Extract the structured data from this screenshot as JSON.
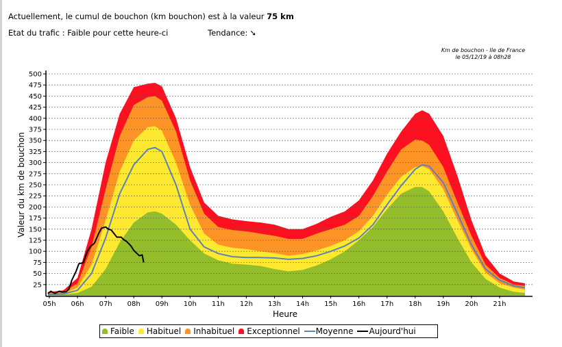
{
  "header": {
    "line1_prefix": "Actuellement, le cumul de bouchon (km bouchon) est à la valeur ",
    "line1_value": "75 km",
    "status": "Etat du trafic : Faible pour cette heure-ci",
    "trend_label": "Tendance:",
    "trend_icon": "arrow-down-right-icon",
    "trend_glyph": "➘"
  },
  "chart_data": {
    "type": "area",
    "title": "Km de bouchon - Ile de France",
    "subtitle": "le 05/12/19 à 08h28",
    "xlabel": "Heure",
    "ylabel": "Valeur du  km de bouchon",
    "ylim": [
      0,
      500
    ],
    "xlim": [
      4.95,
      21.9
    ],
    "grid": true,
    "legend_position": "bottom",
    "yticks": [
      "500",
      "475",
      "450",
      "425",
      "400",
      "375",
      "350",
      "325",
      "300",
      "275",
      "250",
      "225",
      "200",
      "175",
      "150",
      "125",
      "100",
      "75",
      "50",
      "25"
    ],
    "ytick_values": [
      500,
      475,
      450,
      425,
      400,
      375,
      350,
      325,
      300,
      275,
      250,
      225,
      200,
      175,
      150,
      125,
      100,
      75,
      50,
      25
    ],
    "xticks": [
      "05h",
      "06h",
      "07h",
      "08h",
      "09h",
      "10h",
      "11h",
      "12h",
      "13h",
      "14h",
      "15h",
      "16h",
      "17h",
      "18h",
      "19h",
      "20h",
      "21h"
    ],
    "xtick_values": [
      5,
      6,
      7,
      8,
      9,
      10,
      11,
      12,
      13,
      14,
      15,
      16,
      17,
      18,
      19,
      20,
      21
    ],
    "x": [
      4.95,
      5.5,
      6.0,
      6.5,
      7.0,
      7.5,
      8.0,
      8.5,
      8.75,
      9.0,
      9.5,
      10.0,
      10.5,
      11.0,
      11.5,
      12.0,
      12.5,
      13.0,
      13.5,
      14.0,
      14.5,
      15.0,
      15.5,
      16.0,
      16.5,
      17.0,
      17.5,
      18.0,
      18.25,
      18.5,
      19.0,
      19.5,
      20.0,
      20.5,
      21.0,
      21.5,
      21.9
    ],
    "series": [
      {
        "name": "Exceptionnel",
        "color": "#ff1020",
        "values": [
          8,
          12,
          40,
          150,
          300,
          410,
          470,
          478,
          480,
          472,
          400,
          290,
          210,
          180,
          172,
          168,
          165,
          160,
          150,
          150,
          162,
          178,
          190,
          215,
          260,
          320,
          370,
          410,
          418,
          410,
          360,
          270,
          170,
          90,
          50,
          32,
          28
        ]
      },
      {
        "name": "Inhabituel",
        "color": "#ff9426",
        "values": [
          6,
          8,
          28,
          110,
          240,
          360,
          430,
          448,
          450,
          440,
          370,
          260,
          185,
          155,
          148,
          145,
          140,
          135,
          128,
          128,
          140,
          150,
          160,
          180,
          225,
          280,
          330,
          352,
          350,
          340,
          290,
          210,
          135,
          70,
          40,
          25,
          22
        ]
      },
      {
        "name": "Habituel",
        "color": "#ffe930",
        "values": [
          4,
          5,
          18,
          70,
          170,
          280,
          350,
          380,
          382,
          372,
          300,
          205,
          140,
          115,
          108,
          105,
          100,
          96,
          90,
          94,
          102,
          112,
          125,
          145,
          180,
          228,
          268,
          290,
          292,
          285,
          240,
          170,
          105,
          52,
          28,
          18,
          14
        ]
      },
      {
        "name": "Faible",
        "color": "#93bd2a",
        "values": [
          2,
          3,
          6,
          20,
          60,
          120,
          165,
          188,
          190,
          185,
          160,
          125,
          95,
          80,
          72,
          70,
          67,
          60,
          55,
          58,
          68,
          82,
          100,
          125,
          155,
          195,
          230,
          245,
          245,
          235,
          190,
          130,
          75,
          38,
          18,
          9,
          6
        ]
      },
      {
        "name": "Moyenne",
        "color": "#5b82b4",
        "values": [
          3,
          4,
          12,
          50,
          130,
          230,
          295,
          330,
          334,
          325,
          250,
          150,
          110,
          95,
          88,
          86,
          86,
          85,
          82,
          84,
          90,
          100,
          112,
          130,
          160,
          205,
          248,
          285,
          295,
          292,
          255,
          185,
          115,
          60,
          35,
          22,
          18
        ]
      },
      {
        "name": "Aujourd'hui",
        "color": "#000000",
        "x": [
          4.95,
          5.05,
          5.2,
          5.35,
          5.45,
          5.6,
          5.7,
          5.8,
          5.95,
          6.05,
          6.2,
          6.35,
          6.45,
          6.5,
          6.6,
          6.75,
          6.85,
          7.0,
          7.1,
          7.2,
          7.3,
          7.4,
          7.55,
          7.65,
          7.75,
          7.9,
          8.0,
          8.1,
          8.2,
          8.3,
          8.35
        ],
        "values": [
          5,
          10,
          5,
          10,
          8,
          9,
          15,
          35,
          55,
          72,
          74,
          100,
          110,
          113,
          118,
          140,
          152,
          155,
          150,
          148,
          140,
          132,
          132,
          126,
          122,
          112,
          102,
          96,
          90,
          92,
          75
        ]
      }
    ]
  },
  "legend": {
    "items": [
      {
        "label": "Faible",
        "color": "#93bd2a",
        "kind": "area"
      },
      {
        "label": "Habituel",
        "color": "#ffe930",
        "kind": "area"
      },
      {
        "label": "Inhabituel",
        "color": "#ff9426",
        "kind": "area"
      },
      {
        "label": "Exceptionnel",
        "color": "#ff1020",
        "kind": "area"
      },
      {
        "label": "Moyenne",
        "color": "#5b82b4",
        "kind": "line"
      },
      {
        "label": "Aujourd'hui",
        "color": "#000000",
        "kind": "line"
      }
    ]
  }
}
